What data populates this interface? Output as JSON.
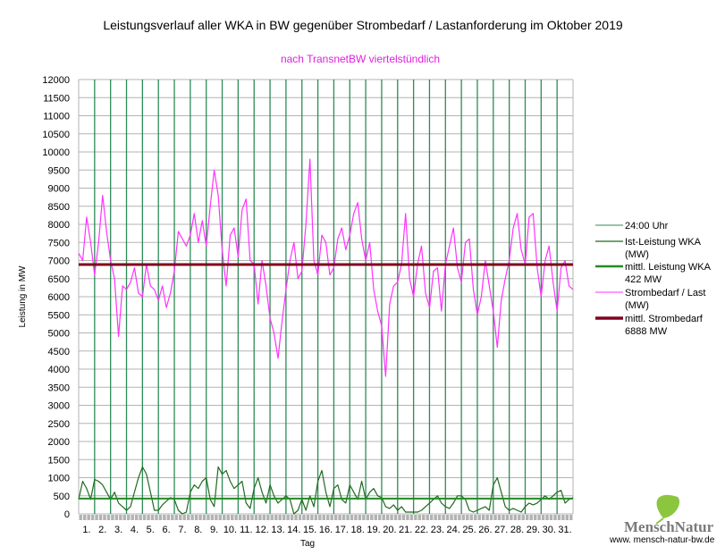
{
  "chart_data": {
    "type": "line",
    "title": "Leistungsverlauf aller WKA in BW gegenüber  Strombedarf / Lastanforderung im Oktober 2019",
    "subtitle": "nach TransnetBW viertelstündlich",
    "xlabel": "Tag",
    "ylabel": "Leistung in MW",
    "ylim": [
      0,
      12000
    ],
    "ytick_step": 500,
    "xlim": [
      1,
      32
    ],
    "x_tick_labels": [
      "1.",
      "2.",
      "3.",
      "4.",
      "5.",
      "6.",
      "7.",
      "8.",
      "9.",
      "10.",
      "11.",
      "12.",
      "13.",
      "14.",
      "15.",
      "16.",
      "17.",
      "18.",
      "19.",
      "20.",
      "21.",
      "22.",
      "23.",
      "24.",
      "25.",
      "26.",
      "27.",
      "28.",
      "29.",
      "30.",
      "31."
    ],
    "grid": true,
    "legend_position": "right",
    "x_step_days": 0.25,
    "series": [
      {
        "name": "24:00 Uhr",
        "kind": "day-boundary-lines",
        "color": "#2e8b57"
      },
      {
        "name": "Ist-Leistung WKA (MW)",
        "color": "#1e6b1e",
        "values": [
          400,
          900,
          700,
          400,
          950,
          900,
          800,
          600,
          400,
          600,
          300,
          200,
          100,
          200,
          600,
          1000,
          1300,
          1100,
          600,
          100,
          100,
          250,
          350,
          450,
          400,
          100,
          0,
          50,
          600,
          800,
          700,
          900,
          1000,
          400,
          200,
          1300,
          1100,
          1200,
          900,
          700,
          800,
          900,
          300,
          150,
          700,
          1000,
          600,
          300,
          800,
          500,
          300,
          400,
          500,
          400,
          0,
          100,
          400,
          100,
          500,
          200,
          900,
          1200,
          600,
          200,
          700,
          800,
          400,
          300,
          800,
          600,
          400,
          900,
          400,
          600,
          700,
          500,
          450,
          200,
          150,
          250,
          100,
          200,
          50,
          50,
          50,
          50,
          100,
          200,
          300,
          400,
          500,
          300,
          200,
          150,
          300,
          500,
          500,
          400,
          100,
          50,
          100,
          150,
          200,
          100,
          800,
          1000,
          600,
          200,
          100,
          150,
          100,
          50,
          200,
          300,
          250,
          300,
          400,
          500,
          400,
          500,
          600,
          650,
          300,
          400,
          450
        ]
      },
      {
        "name": "mittl. Leistung WKA 422 MW",
        "color": "#228b22",
        "constant": 422
      },
      {
        "name": "Strombedarf / Last (MW)",
        "color": "#ff33ff",
        "values": [
          7200,
          7000,
          8200,
          7500,
          6600,
          7500,
          8800,
          7800,
          7000,
          6500,
          4900,
          6300,
          6200,
          6400,
          6800,
          6100,
          6000,
          6900,
          6300,
          6200,
          5900,
          6300,
          5700,
          6100,
          6700,
          7800,
          7600,
          7400,
          7700,
          8300,
          7500,
          8100,
          7400,
          8500,
          9500,
          8800,
          7300,
          6300,
          7700,
          7900,
          7100,
          8400,
          8700,
          7000,
          6900,
          5800,
          7000,
          6300,
          5400,
          5000,
          4300,
          5300,
          6200,
          7000,
          7500,
          6500,
          6700,
          8000,
          9800,
          7000,
          6600,
          7700,
          7500,
          6600,
          6800,
          7600,
          7900,
          7300,
          7700,
          8300,
          8600,
          7600,
          7000,
          7500,
          6200,
          5600,
          5200,
          3800,
          5800,
          6300,
          6400,
          6900,
          8300,
          6500,
          6000,
          6900,
          7400,
          6100,
          5700,
          6700,
          6800,
          5600,
          6900,
          7400,
          7900,
          6800,
          6400,
          7500,
          7600,
          6200,
          5500,
          6000,
          7000,
          6300,
          5600,
          4600,
          5900,
          6500,
          7000,
          7900,
          8300,
          7300,
          6900,
          8200,
          8300,
          6800,
          6000,
          7000,
          7400,
          6400,
          5600,
          6800,
          7000,
          6300,
          6200
        ]
      },
      {
        "name": "mittl. Strombedarf 6888 MW",
        "color": "#800020",
        "constant": 6888
      }
    ],
    "legend": [
      {
        "label": "24:00 Uhr",
        "color": "#2e8b57"
      },
      {
        "label": "Ist-Leistung WKA",
        "label2": "(MW)",
        "color": "#1e6b1e"
      },
      {
        "label": "mittl. Leistung WKA",
        "label2": "422 MW",
        "color": "#228b22"
      },
      {
        "label": "Strombedarf / Last",
        "label2": "(MW)",
        "color": "#ff33ff"
      },
      {
        "label": "mittl. Strombedarf",
        "label2": "6888 MW",
        "color": "#800020"
      }
    ]
  },
  "logo": {
    "name": "MenschNatur",
    "url": "www. mensch-natur-bw.de"
  }
}
